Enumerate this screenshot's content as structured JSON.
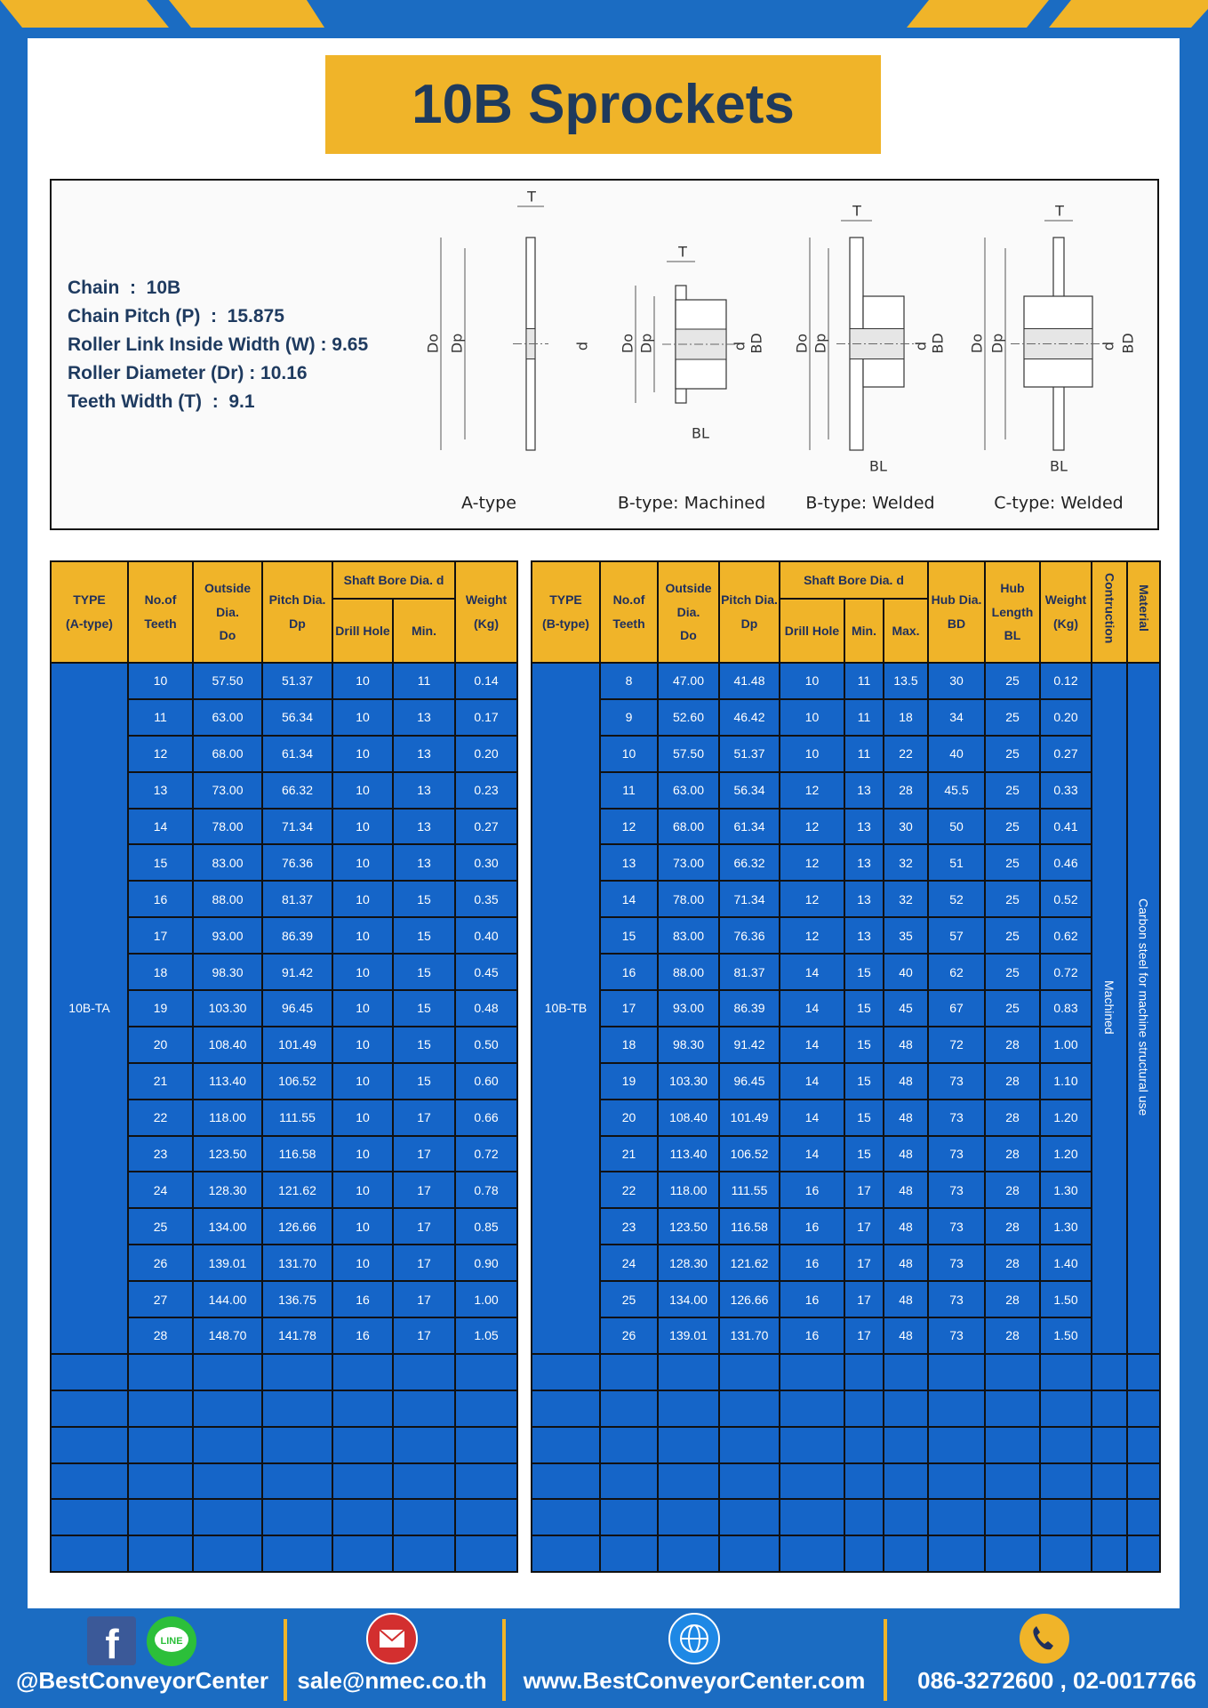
{
  "header": {
    "title": "10B Sprockets"
  },
  "specs": [
    "Chain  :  10B",
    "Chain Pitch (P)  :  15.875",
    "Roller Link Inside Width (W) : 9.65",
    "Roller Diameter (Dr) : 10.16",
    "Teeth Width (T)  :  9.1"
  ],
  "diagrams": [
    {
      "caption": "A-type",
      "labels": [
        "T",
        "Do",
        "Dp",
        "d"
      ]
    },
    {
      "caption": "B-type: Machined",
      "labels": [
        "T",
        "Do",
        "Dp",
        "d",
        "BD",
        "BL"
      ]
    },
    {
      "caption": "B-type: Welded",
      "labels": [
        "T",
        "Do",
        "Dp",
        "d",
        "BD",
        "BL"
      ]
    },
    {
      "caption": "C-type: Welded",
      "labels": [
        "T",
        "Do",
        "Dp",
        "d",
        "BD",
        "BL"
      ]
    }
  ],
  "table_a": {
    "header_top": [
      "TYPE\n(A-type)",
      "No.of\nTeeth",
      "Outside\nDia.\nDo",
      "Pitch Dia.\nDp",
      "Shaft Bore Dia. d",
      "Weight\n(Kg)"
    ],
    "header_sub": [
      "Drill Hole",
      "Min."
    ],
    "type_value": "10B-TA",
    "rows": [
      [
        "10",
        "57.50",
        "51.37",
        "10",
        "11",
        "0.14"
      ],
      [
        "11",
        "63.00",
        "56.34",
        "10",
        "13",
        "0.17"
      ],
      [
        "12",
        "68.00",
        "61.34",
        "10",
        "13",
        "0.20"
      ],
      [
        "13",
        "73.00",
        "66.32",
        "10",
        "13",
        "0.23"
      ],
      [
        "14",
        "78.00",
        "71.34",
        "10",
        "13",
        "0.27"
      ],
      [
        "15",
        "83.00",
        "76.36",
        "10",
        "13",
        "0.30"
      ],
      [
        "16",
        "88.00",
        "81.37",
        "10",
        "15",
        "0.35"
      ],
      [
        "17",
        "93.00",
        "86.39",
        "10",
        "15",
        "0.40"
      ],
      [
        "18",
        "98.30",
        "91.42",
        "10",
        "15",
        "0.45"
      ],
      [
        "19",
        "103.30",
        "96.45",
        "10",
        "15",
        "0.48"
      ],
      [
        "20",
        "108.40",
        "101.49",
        "10",
        "15",
        "0.50"
      ],
      [
        "21",
        "113.40",
        "106.52",
        "10",
        "15",
        "0.60"
      ],
      [
        "22",
        "118.00",
        "111.55",
        "10",
        "17",
        "0.66"
      ],
      [
        "23",
        "123.50",
        "116.58",
        "10",
        "17",
        "0.72"
      ],
      [
        "24",
        "128.30",
        "121.62",
        "10",
        "17",
        "0.78"
      ],
      [
        "25",
        "134.00",
        "126.66",
        "10",
        "17",
        "0.85"
      ],
      [
        "26",
        "139.01",
        "131.70",
        "10",
        "17",
        "0.90"
      ],
      [
        "27",
        "144.00",
        "136.75",
        "16",
        "17",
        "1.00"
      ],
      [
        "28",
        "148.70",
        "141.78",
        "16",
        "17",
        "1.05"
      ]
    ]
  },
  "table_b": {
    "header_top": [
      "TYPE\n(B-type)",
      "No.of\nTeeth",
      "Outside\nDia.\nDo",
      "Pitch Dia.\nDp",
      "Shaft Bore Dia. d",
      "Hub Dia.\nBD",
      "Hub\nLength\nBL",
      "Weight\n(Kg)",
      "Contruction",
      "Material"
    ],
    "header_sub": [
      "Drill Hole",
      "Min.",
      "Max."
    ],
    "type_value": "10B-TB",
    "construction": "Machined",
    "material": "Carbon steel  for machine structural use",
    "rows": [
      [
        "8",
        "47.00",
        "41.48",
        "10",
        "11",
        "13.5",
        "30",
        "25",
        "0.12"
      ],
      [
        "9",
        "52.60",
        "46.42",
        "10",
        "11",
        "18",
        "34",
        "25",
        "0.20"
      ],
      [
        "10",
        "57.50",
        "51.37",
        "10",
        "11",
        "22",
        "40",
        "25",
        "0.27"
      ],
      [
        "11",
        "63.00",
        "56.34",
        "12",
        "13",
        "28",
        "45.5",
        "25",
        "0.33"
      ],
      [
        "12",
        "68.00",
        "61.34",
        "12",
        "13",
        "30",
        "50",
        "25",
        "0.41"
      ],
      [
        "13",
        "73.00",
        "66.32",
        "12",
        "13",
        "32",
        "51",
        "25",
        "0.46"
      ],
      [
        "14",
        "78.00",
        "71.34",
        "12",
        "13",
        "32",
        "52",
        "25",
        "0.52"
      ],
      [
        "15",
        "83.00",
        "76.36",
        "12",
        "13",
        "35",
        "57",
        "25",
        "0.62"
      ],
      [
        "16",
        "88.00",
        "81.37",
        "14",
        "15",
        "40",
        "62",
        "25",
        "0.72"
      ],
      [
        "17",
        "93.00",
        "86.39",
        "14",
        "15",
        "45",
        "67",
        "25",
        "0.83"
      ],
      [
        "18",
        "98.30",
        "91.42",
        "14",
        "15",
        "48",
        "72",
        "28",
        "1.00"
      ],
      [
        "19",
        "103.30",
        "96.45",
        "14",
        "15",
        "48",
        "73",
        "28",
        "1.10"
      ],
      [
        "20",
        "108.40",
        "101.49",
        "14",
        "15",
        "48",
        "73",
        "28",
        "1.20"
      ],
      [
        "21",
        "113.40",
        "106.52",
        "14",
        "15",
        "48",
        "73",
        "28",
        "1.20"
      ],
      [
        "22",
        "118.00",
        "111.55",
        "16",
        "17",
        "48",
        "73",
        "28",
        "1.30"
      ],
      [
        "23",
        "123.50",
        "116.58",
        "16",
        "17",
        "48",
        "73",
        "28",
        "1.30"
      ],
      [
        "24",
        "128.30",
        "121.62",
        "16",
        "17",
        "48",
        "73",
        "28",
        "1.40"
      ],
      [
        "25",
        "134.00",
        "126.66",
        "16",
        "17",
        "48",
        "73",
        "28",
        "1.50"
      ],
      [
        "26",
        "139.01",
        "131.70",
        "16",
        "17",
        "48",
        "73",
        "28",
        "1.50"
      ]
    ]
  },
  "footer": {
    "facebook_icon": "f",
    "line_icon": "LINE",
    "contacts": [
      "@BestConveyorCenter",
      "sale@nmec.co.th",
      "www.BestConveyorCenter.com",
      "086-3272600 , 02-0017766"
    ]
  }
}
